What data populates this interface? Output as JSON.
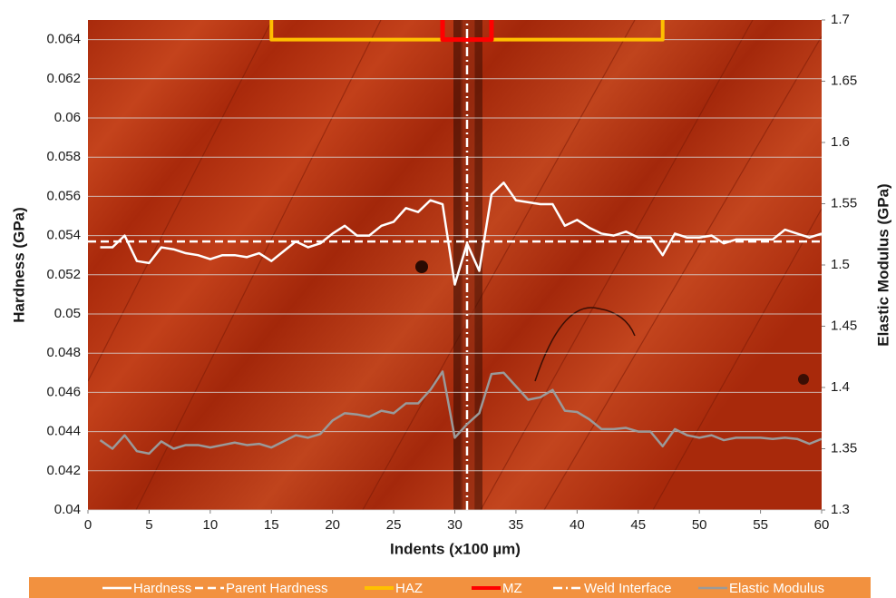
{
  "chart_data": {
    "type": "line",
    "x_label": "Indents (x100 µm)",
    "y_label": "Hardness (GPa)",
    "y2_label": "Elastic Modulus (GPa)",
    "xlim": [
      0,
      60
    ],
    "xticks": [
      0,
      5,
      10,
      15,
      20,
      25,
      30,
      35,
      40,
      45,
      50,
      55,
      60
    ],
    "ylim": [
      0.04,
      0.065
    ],
    "yticks": [
      0.04,
      0.042,
      0.044,
      0.046,
      0.048,
      0.05,
      0.052,
      0.054,
      0.056,
      0.058,
      0.06,
      0.062,
      0.064
    ],
    "y2lim": [
      1.3,
      1.7
    ],
    "y2ticks": [
      1.3,
      1.35,
      1.4,
      1.45,
      1.5,
      1.55,
      1.6,
      1.65,
      1.7
    ],
    "grid": true,
    "legend": "bottom",
    "series": [
      {
        "name": "Hardness",
        "color": "#ffffff",
        "dash": "solid",
        "width": 2.5,
        "x": [
          1,
          2,
          3,
          4,
          5,
          6,
          7,
          8,
          9,
          10,
          11,
          12,
          13,
          14,
          15,
          16,
          17,
          18,
          19,
          20,
          21,
          22,
          23,
          24,
          25,
          26,
          27,
          28,
          29,
          30,
          31,
          32,
          33,
          34,
          35,
          36,
          37,
          38,
          39,
          40,
          41,
          42,
          43,
          44,
          45,
          46,
          47,
          48,
          49,
          50,
          51,
          52,
          53,
          54,
          55,
          56,
          57,
          58,
          59,
          60
        ],
        "values": [
          0.0534,
          0.0534,
          0.054,
          0.0527,
          0.0526,
          0.0534,
          0.0533,
          0.0531,
          0.053,
          0.0528,
          0.053,
          0.053,
          0.0529,
          0.0531,
          0.0527,
          0.0532,
          0.0537,
          0.0534,
          0.0536,
          0.0541,
          0.0545,
          0.054,
          0.054,
          0.0545,
          0.0547,
          0.0554,
          0.0552,
          0.0558,
          0.0556,
          0.0515,
          0.0536,
          0.0522,
          0.0561,
          0.0567,
          0.0558,
          0.0557,
          0.0556,
          0.0556,
          0.0545,
          0.0548,
          0.0544,
          0.0541,
          0.054,
          0.0542,
          0.0539,
          0.0539,
          0.053,
          0.0541,
          0.0539,
          0.0539,
          0.054,
          0.0536,
          0.0538,
          0.0538,
          0.0538,
          0.0538,
          0.0543,
          0.0541,
          0.0539,
          0.0541
        ]
      },
      {
        "name": "Parent Hardness",
        "color": "#ffffff",
        "dash": "dashed",
        "width": 2.5,
        "x": [
          0,
          60
        ],
        "values": [
          0.0537,
          0.0537
        ]
      },
      {
        "name": "HAZ",
        "color": "#ffc000",
        "dash": "solid",
        "width": 4,
        "x": [
          15,
          15,
          47,
          47
        ],
        "values": [
          0.065,
          0.064,
          0.064,
          0.065
        ]
      },
      {
        "name": "MZ",
        "color": "#ff0000",
        "dash": "solid",
        "width": 5,
        "x": [
          29,
          29,
          33,
          33
        ],
        "values": [
          0.065,
          0.064,
          0.064,
          0.065
        ]
      },
      {
        "name": "Weld Interface",
        "color": "#ffffff",
        "dash": "dashdot",
        "width": 2.5,
        "x": [
          31,
          31
        ],
        "values": [
          0.04,
          0.065
        ]
      },
      {
        "name": "Elastic Modulus",
        "color": "#9a9a9a",
        "dash": "solid",
        "width": 2.5,
        "axis": "y2",
        "x": [
          1,
          2,
          3,
          4,
          5,
          6,
          7,
          8,
          9,
          10,
          11,
          12,
          13,
          14,
          15,
          16,
          17,
          18,
          19,
          20,
          21,
          22,
          23,
          24,
          25,
          26,
          27,
          28,
          29,
          30,
          31,
          32,
          33,
          34,
          35,
          36,
          37,
          38,
          39,
          40,
          41,
          42,
          43,
          44,
          45,
          46,
          47,
          48,
          49,
          50,
          51,
          52,
          53,
          54,
          55,
          56,
          57,
          58,
          59,
          60
        ],
        "values": [
          1.357,
          1.35,
          1.361,
          1.348,
          1.346,
          1.356,
          1.35,
          1.353,
          1.353,
          1.351,
          1.353,
          1.355,
          1.353,
          1.354,
          1.351,
          1.356,
          1.361,
          1.359,
          1.362,
          1.373,
          1.379,
          1.378,
          1.376,
          1.381,
          1.379,
          1.387,
          1.387,
          1.398,
          1.413,
          1.359,
          1.37,
          1.379,
          1.411,
          1.412,
          1.401,
          1.39,
          1.392,
          1.398,
          1.381,
          1.38,
          1.374,
          1.366,
          1.366,
          1.367,
          1.364,
          1.364,
          1.352,
          1.366,
          1.361,
          1.359,
          1.361,
          1.357,
          1.359,
          1.359,
          1.359,
          1.358,
          1.359,
          1.358,
          1.354,
          1.358
        ]
      }
    ]
  }
}
